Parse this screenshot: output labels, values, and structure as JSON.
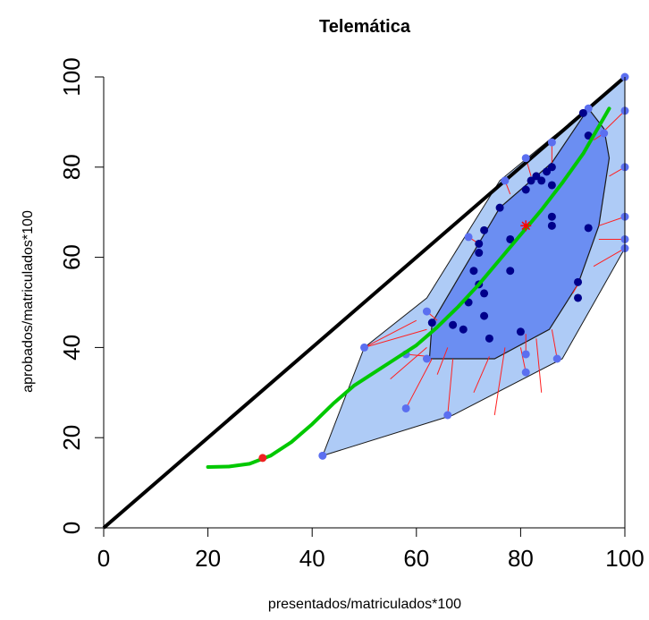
{
  "chart_data": {
    "type": "scatter",
    "title": "Telemática",
    "xlabel": "presentados/matriculados*100",
    "ylabel": "aprobados/matriculados*100",
    "xlim": [
      0,
      100
    ],
    "ylim": [
      0,
      100
    ],
    "x_ticks": [
      "0",
      "20",
      "40",
      "60",
      "80",
      "100"
    ],
    "y_ticks": [
      "0",
      "20",
      "40",
      "60",
      "80",
      "100"
    ],
    "colors": {
      "outer_hull_fill": "#aecbf6",
      "inner_hull_fill": "#6b8ef2",
      "points": "#00008b",
      "outer_points": "#5b6ff0",
      "smooth_line": "#00c800",
      "diagonal": "#000000",
      "connectors": "#ff2020",
      "median_marker": "#ff0000"
    },
    "diagonal": [
      [
        0,
        0
      ],
      [
        100,
        100
      ]
    ],
    "outer_hull": [
      [
        42,
        16
      ],
      [
        50,
        40
      ],
      [
        62,
        51
      ],
      [
        76,
        77
      ],
      [
        86,
        86.5
      ],
      [
        93,
        93
      ],
      [
        100,
        100
      ],
      [
        100,
        62
      ],
      [
        88,
        37.5
      ],
      [
        67,
        25
      ],
      [
        42,
        16
      ]
    ],
    "inner_hull": [
      [
        62.5,
        37.5
      ],
      [
        63,
        45.5
      ],
      [
        76,
        71
      ],
      [
        86,
        81
      ],
      [
        93,
        93
      ],
      [
        96,
        88.5
      ],
      [
        97,
        82
      ],
      [
        95,
        67
      ],
      [
        91,
        54
      ],
      [
        85.5,
        44
      ],
      [
        75,
        37.5
      ],
      [
        62.5,
        37.5
      ]
    ],
    "inner_points": [
      [
        63,
        45.5
      ],
      [
        67,
        45
      ],
      [
        69,
        44
      ],
      [
        70,
        50
      ],
      [
        71,
        57
      ],
      [
        72,
        61
      ],
      [
        72,
        63
      ],
      [
        73,
        66
      ],
      [
        72,
        54
      ],
      [
        73,
        52
      ],
      [
        73,
        47
      ],
      [
        74,
        42
      ],
      [
        76,
        71
      ],
      [
        78,
        64
      ],
      [
        78,
        57
      ],
      [
        80,
        43.5
      ],
      [
        81,
        75
      ],
      [
        82,
        77
      ],
      [
        83,
        78
      ],
      [
        84,
        77
      ],
      [
        85,
        79
      ],
      [
        86,
        80
      ],
      [
        86,
        69
      ],
      [
        86,
        67
      ],
      [
        86,
        76
      ],
      [
        91,
        54.5
      ],
      [
        91,
        51
      ],
      [
        93,
        66.5
      ],
      [
        93,
        87
      ],
      [
        92,
        92
      ]
    ],
    "outer_points": [
      [
        42,
        16
      ],
      [
        50,
        40
      ],
      [
        58,
        26.5
      ],
      [
        58,
        38.5
      ],
      [
        62,
        48
      ],
      [
        62,
        37.5
      ],
      [
        66,
        25
      ],
      [
        70,
        64.5
      ],
      [
        77,
        77
      ],
      [
        81,
        38.5
      ],
      [
        81,
        34.5
      ],
      [
        81,
        82
      ],
      [
        86,
        85.5
      ],
      [
        87,
        37.5
      ],
      [
        93,
        93
      ],
      [
        96,
        87.5
      ],
      [
        100,
        100
      ],
      [
        100,
        92.5
      ],
      [
        100,
        80
      ],
      [
        100,
        69
      ],
      [
        100,
        64
      ],
      [
        100,
        62
      ]
    ],
    "connectors": [
      [
        [
          50,
          40
        ],
        [
          60,
          46
        ]
      ],
      [
        [
          50,
          40
        ],
        [
          62,
          44
        ]
      ],
      [
        [
          58,
          26.5
        ],
        [
          63,
          37.5
        ]
      ],
      [
        [
          58,
          38.5
        ],
        [
          62.5,
          38
        ]
      ],
      [
        [
          62,
          48
        ],
        [
          64,
          46
        ]
      ],
      [
        [
          66,
          25
        ],
        [
          67,
          37.5
        ]
      ],
      [
        [
          70,
          64.5
        ],
        [
          72,
          63
        ]
      ],
      [
        [
          77,
          77
        ],
        [
          78,
          74
        ]
      ],
      [
        [
          81,
          38.5
        ],
        [
          81,
          43
        ]
      ],
      [
        [
          81,
          34.5
        ],
        [
          80,
          40
        ]
      ],
      [
        [
          81,
          82
        ],
        [
          82,
          78
        ]
      ],
      [
        [
          86,
          85.5
        ],
        [
          86,
          81
        ]
      ],
      [
        [
          87,
          37.5
        ],
        [
          86,
          44
        ]
      ],
      [
        [
          96,
          87.5
        ],
        [
          94,
          86
        ]
      ],
      [
        [
          100,
          92.5
        ],
        [
          96,
          88
        ]
      ],
      [
        [
          100,
          80
        ],
        [
          97,
          78
        ]
      ],
      [
        [
          100,
          69
        ],
        [
          95,
          67
        ]
      ],
      [
        [
          100,
          64
        ],
        [
          95,
          64
        ]
      ],
      [
        [
          100,
          62
        ],
        [
          94,
          58
        ]
      ],
      [
        [
          75,
          25
        ],
        [
          77,
          40
        ]
      ],
      [
        [
          64,
          34
        ],
        [
          66,
          40
        ]
      ],
      [
        [
          55,
          33
        ],
        [
          62,
          40
        ]
      ],
      [
        [
          71,
          30
        ],
        [
          74,
          38
        ]
      ],
      [
        [
          84,
          30
        ],
        [
          83,
          42
        ]
      ],
      [
        [
          90,
          52
        ],
        [
          91,
          54
        ]
      ]
    ],
    "smooth_line": [
      [
        20,
        13.5
      ],
      [
        24,
        13.6
      ],
      [
        28,
        14.2
      ],
      [
        32,
        16
      ],
      [
        36,
        19
      ],
      [
        40,
        23
      ],
      [
        44,
        27.5
      ],
      [
        48,
        31.5
      ],
      [
        52,
        34.5
      ],
      [
        56,
        37.5
      ],
      [
        60,
        40.5
      ],
      [
        64,
        44.5
      ],
      [
        68,
        49
      ],
      [
        72,
        54
      ],
      [
        76,
        59.5
      ],
      [
        80,
        65
      ],
      [
        84,
        70.5
      ],
      [
        88,
        76.5
      ],
      [
        92,
        83
      ],
      [
        95,
        89
      ],
      [
        97,
        93
      ]
    ],
    "red_point": [
      30.5,
      15.5
    ],
    "median_marker": [
      81,
      67
    ]
  }
}
